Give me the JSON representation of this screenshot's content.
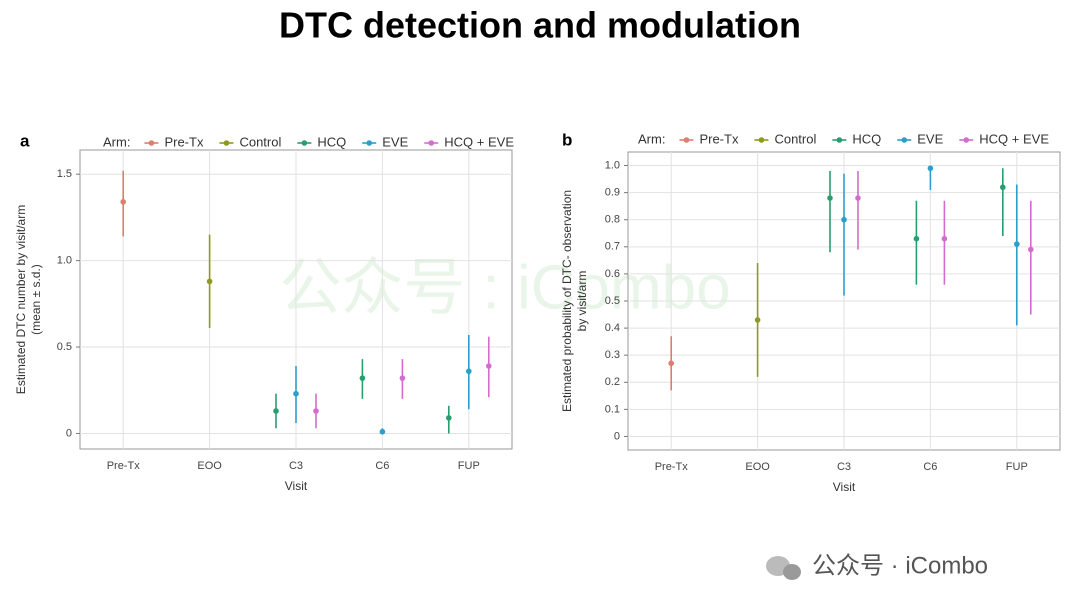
{
  "title": "DTC detection and modulation",
  "watermarks": [
    "公众号 : iCombo",
    "公众号 · iCombo"
  ],
  "chart_data": [
    {
      "type": "errorbar",
      "label": "a",
      "legend_title": "Arm:",
      "xlabel": "Visit",
      "ylabel": [
        "Estimated DTC number by visit/arm",
        "(mean ± s.d.)"
      ],
      "categories": [
        "Pre-Tx",
        "EOO",
        "C3",
        "C6",
        "FUP"
      ],
      "ylim": [
        -0.09,
        1.64
      ],
      "yticks": [
        0,
        0.5,
        {
          "value": 1,
          "label": "1.0"
        },
        1.5
      ],
      "grid": true,
      "series": [
        {
          "name": "Pre-Tx",
          "color": "#e07b6e",
          "values": [
            1.34,
            null,
            null,
            null,
            null
          ],
          "lower": [
            1.14,
            null,
            null,
            null,
            null
          ],
          "upper": [
            1.52,
            null,
            null,
            null,
            null
          ]
        },
        {
          "name": "Control",
          "color": "#8f9a1c",
          "values": [
            null,
            0.88,
            null,
            null,
            null
          ],
          "lower": [
            null,
            0.61,
            null,
            null,
            null
          ],
          "upper": [
            null,
            1.15,
            null,
            null,
            null
          ]
        },
        {
          "name": "HCQ",
          "color": "#2a9d6e",
          "values": [
            null,
            null,
            0.13,
            0.32,
            0.09
          ],
          "lower": [
            null,
            null,
            0.03,
            0.2,
            0
          ],
          "upper": [
            null,
            null,
            0.23,
            0.43,
            0.16
          ]
        },
        {
          "name": "EVE",
          "color": "#2b9fc9",
          "values": [
            null,
            null,
            0.23,
            0.01,
            0.36
          ],
          "lower": [
            null,
            null,
            0.06,
            0,
            0.14
          ],
          "upper": [
            null,
            null,
            0.39,
            0.03,
            0.57
          ]
        },
        {
          "name": "HCQ + EVE",
          "color": "#d46ccf",
          "values": [
            null,
            null,
            0.13,
            0.32,
            0.39
          ],
          "lower": [
            null,
            null,
            0.03,
            0.2,
            0.21
          ],
          "upper": [
            null,
            null,
            0.23,
            0.43,
            0.56
          ]
        }
      ]
    },
    {
      "type": "errorbar",
      "label": "b",
      "legend_title": "Arm:",
      "xlabel": "Visit",
      "ylabel": [
        "Estimated probability of DTC- observation",
        "by visit/arm"
      ],
      "categories": [
        "Pre-Tx",
        "EOO",
        "C3",
        "C6",
        "FUP"
      ],
      "ylim": [
        -0.05,
        1.05
      ],
      "yticks": [
        0,
        0.1,
        0.2,
        0.3,
        0.4,
        0.5,
        0.6,
        0.7,
        0.8,
        0.9,
        {
          "value": 1,
          "label": "1.0"
        }
      ],
      "grid": true,
      "series": [
        {
          "name": "Pre-Tx",
          "color": "#e07b6e",
          "values": [
            0.27,
            null,
            null,
            null,
            null
          ],
          "lower": [
            0.17,
            null,
            null,
            null,
            null
          ],
          "upper": [
            0.37,
            null,
            null,
            null,
            null
          ]
        },
        {
          "name": "Control",
          "color": "#8f9a1c",
          "values": [
            null,
            0.43,
            null,
            null,
            null
          ],
          "lower": [
            null,
            0.22,
            null,
            null,
            null
          ],
          "upper": [
            null,
            0.64,
            null,
            null,
            null
          ]
        },
        {
          "name": "HCQ",
          "color": "#2a9d6e",
          "values": [
            null,
            null,
            0.88,
            0.73,
            0.92
          ],
          "lower": [
            null,
            null,
            0.68,
            0.56,
            0.74
          ],
          "upper": [
            null,
            null,
            0.98,
            0.87,
            0.99
          ]
        },
        {
          "name": "EVE",
          "color": "#2b9fc9",
          "values": [
            null,
            null,
            0.8,
            0.99,
            0.71
          ],
          "lower": [
            null,
            null,
            0.52,
            0.91,
            0.41
          ],
          "upper": [
            null,
            null,
            0.97,
            1,
            0.93
          ]
        },
        {
          "name": "HCQ + EVE",
          "color": "#d46ccf",
          "values": [
            null,
            null,
            0.88,
            0.73,
            0.69
          ],
          "lower": [
            null,
            null,
            0.69,
            0.56,
            0.45
          ],
          "upper": [
            null,
            null,
            0.98,
            0.87,
            0.87
          ]
        }
      ]
    }
  ]
}
